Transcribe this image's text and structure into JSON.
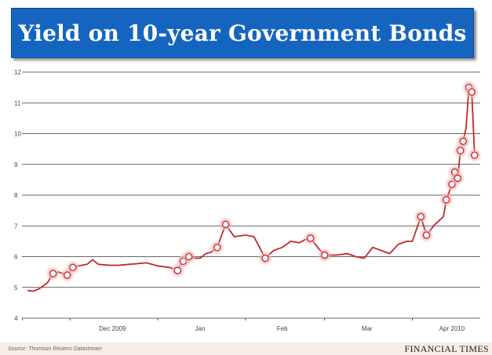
{
  "title": "Yield on 10-year Government Bonds",
  "source": "Source: Thomson Reuters Datastream",
  "publisher": "FINANCIAL TIMES",
  "colors": {
    "banner": "#1565c0",
    "line": "#c0282c",
    "marker_fill": "#ffffff",
    "marker_halo": "#f2b8b8",
    "grid": "#333333",
    "footer_bg": "#f6eee6"
  },
  "chart_data": {
    "type": "line",
    "title": "Yield on 10-year Government Bonds",
    "xlabel": "",
    "ylabel": "",
    "ylim": [
      4,
      12
    ],
    "yticks": [
      4,
      5,
      6,
      7,
      8,
      9,
      10,
      11,
      12
    ],
    "x_tick_labels": [
      "Dec 2009",
      "Jan",
      "Feb",
      "Mar",
      "Apr 2010"
    ],
    "grid": true,
    "series": [
      {
        "values": [
          {
            "x": "2009-11-16",
            "y": 4.9
          },
          {
            "x": "2009-11-18",
            "y": 4.88
          },
          {
            "x": "2009-11-20",
            "y": 4.95
          },
          {
            "x": "2009-11-23",
            "y": 5.15
          },
          {
            "x": "2009-11-25",
            "y": 5.45,
            "marker": true
          },
          {
            "x": "2009-11-27",
            "y": 5.5
          },
          {
            "x": "2009-11-30",
            "y": 5.4,
            "marker": true
          },
          {
            "x": "2009-12-02",
            "y": 5.65,
            "marker": true
          },
          {
            "x": "2009-12-04",
            "y": 5.7
          },
          {
            "x": "2009-12-07",
            "y": 5.75
          },
          {
            "x": "2009-12-09",
            "y": 5.9
          },
          {
            "x": "2009-12-11",
            "y": 5.75
          },
          {
            "x": "2009-12-15",
            "y": 5.72
          },
          {
            "x": "2009-12-18",
            "y": 5.72
          },
          {
            "x": "2009-12-22",
            "y": 5.75
          },
          {
            "x": "2009-12-28",
            "y": 5.8
          },
          {
            "x": "2010-01-01",
            "y": 5.7
          },
          {
            "x": "2010-01-05",
            "y": 5.65
          },
          {
            "x": "2010-01-07",
            "y": 5.6
          },
          {
            "x": "2010-01-08",
            "y": 5.55,
            "marker": true
          },
          {
            "x": "2010-01-10",
            "y": 5.85,
            "marker": true
          },
          {
            "x": "2010-01-12",
            "y": 6.0,
            "marker": true
          },
          {
            "x": "2010-01-14",
            "y": 5.95
          },
          {
            "x": "2010-01-16",
            "y": 5.95
          },
          {
            "x": "2010-01-18",
            "y": 6.1
          },
          {
            "x": "2010-01-20",
            "y": 6.15
          },
          {
            "x": "2010-01-22",
            "y": 6.3,
            "marker": true
          },
          {
            "x": "2010-01-25",
            "y": 7.05,
            "marker": true
          },
          {
            "x": "2010-01-28",
            "y": 6.65
          },
          {
            "x": "2010-02-01",
            "y": 6.7
          },
          {
            "x": "2010-02-04",
            "y": 6.65
          },
          {
            "x": "2010-02-06",
            "y": 6.3
          },
          {
            "x": "2010-02-08",
            "y": 5.95,
            "marker": true
          },
          {
            "x": "2010-02-11",
            "y": 6.2
          },
          {
            "x": "2010-02-14",
            "y": 6.3
          },
          {
            "x": "2010-02-17",
            "y": 6.5
          },
          {
            "x": "2010-02-20",
            "y": 6.45
          },
          {
            "x": "2010-02-22",
            "y": 6.55
          },
          {
            "x": "2010-02-24",
            "y": 6.6,
            "marker": true
          },
          {
            "x": "2010-02-27",
            "y": 6.25
          },
          {
            "x": "2010-03-01",
            "y": 6.05,
            "marker": true
          },
          {
            "x": "2010-03-05",
            "y": 6.05
          },
          {
            "x": "2010-03-09",
            "y": 6.1
          },
          {
            "x": "2010-03-12",
            "y": 6.0
          },
          {
            "x": "2010-03-15",
            "y": 5.95
          },
          {
            "x": "2010-03-18",
            "y": 6.3
          },
          {
            "x": "2010-03-21",
            "y": 6.2
          },
          {
            "x": "2010-03-24",
            "y": 6.1
          },
          {
            "x": "2010-03-27",
            "y": 6.4
          },
          {
            "x": "2010-03-30",
            "y": 6.5
          },
          {
            "x": "2010-04-01",
            "y": 6.5
          },
          {
            "x": "2010-04-04",
            "y": 7.3,
            "marker": true
          },
          {
            "x": "2010-04-06",
            "y": 6.7,
            "marker": true
          },
          {
            "x": "2010-04-09",
            "y": 7.05
          },
          {
            "x": "2010-04-12",
            "y": 7.3
          },
          {
            "x": "2010-04-13",
            "y": 7.85,
            "marker": true
          },
          {
            "x": "2010-04-15",
            "y": 8.35,
            "marker": true
          },
          {
            "x": "2010-04-16",
            "y": 8.75,
            "marker": true
          },
          {
            "x": "2010-04-17",
            "y": 8.55,
            "marker": true
          },
          {
            "x": "2010-04-18",
            "y": 9.45,
            "marker": true
          },
          {
            "x": "2010-04-19",
            "y": 9.75,
            "marker": true
          },
          {
            "x": "2010-04-20",
            "y": 10.2
          },
          {
            "x": "2010-04-21",
            "y": 11.5,
            "marker": true
          },
          {
            "x": "2010-04-22",
            "y": 11.35,
            "marker": true
          },
          {
            "x": "2010-04-23",
            "y": 9.3,
            "marker": true
          }
        ]
      }
    ]
  }
}
